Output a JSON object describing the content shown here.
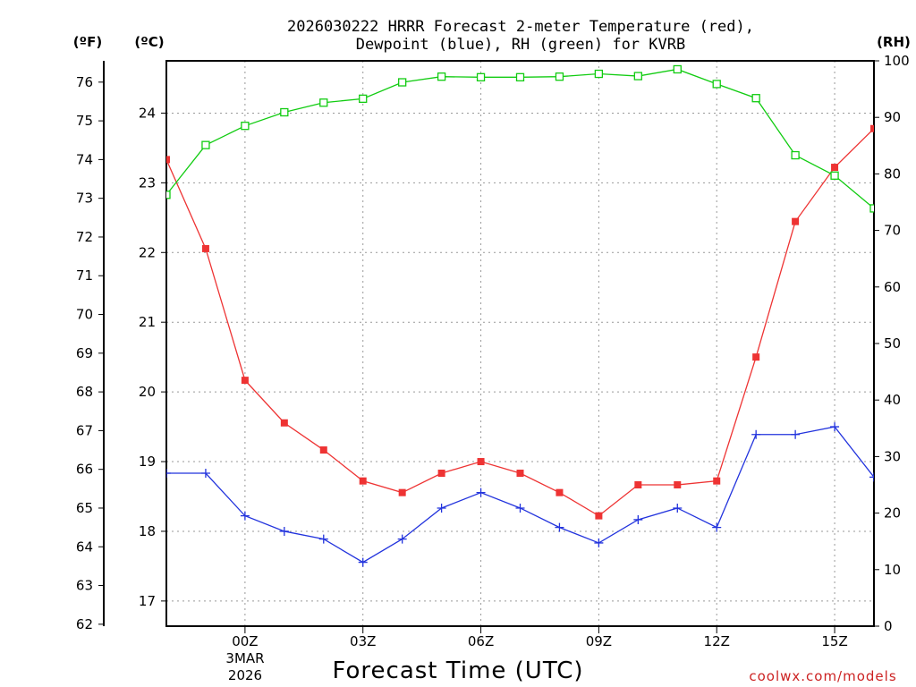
{
  "chart_data": {
    "type": "line",
    "title_line1": "2026030222 HRRR Forecast 2-meter Temperature (red),",
    "title_line2": "Dewpoint (blue), RH (green) for KVRB",
    "xlabel": "Forecast Time (UTC)",
    "credit": "coolwx.com/models",
    "date_label_1": "3MAR",
    "date_label_2": "2026",
    "unit_f": "(ºF)",
    "unit_c": "(ºC)",
    "unit_rh": "(RH)",
    "x_hours_range": [
      -2,
      16
    ],
    "x_ticks": [
      {
        "hour": 0,
        "label": "00Z"
      },
      {
        "hour": 3,
        "label": "03Z"
      },
      {
        "hour": 6,
        "label": "06Z"
      },
      {
        "hour": 9,
        "label": "09Z"
      },
      {
        "hour": 12,
        "label": "12Z"
      },
      {
        "hour": 15,
        "label": "15Z"
      }
    ],
    "f_ticks": [
      "62",
      "63",
      "64",
      "65",
      "66",
      "67",
      "68",
      "69",
      "70",
      "71",
      "72",
      "73",
      "74",
      "75",
      "76"
    ],
    "c_ticks": [
      "17",
      "18",
      "19",
      "20",
      "21",
      "22",
      "23",
      "24"
    ],
    "rh_ticks": [
      "0",
      "10",
      "20",
      "30",
      "40",
      "50",
      "60",
      "70",
      "80",
      "90",
      "100"
    ],
    "f_range": [
      61.95,
      76.55
    ],
    "rh_range": [
      0,
      100
    ],
    "colors": {
      "temperature": "#ee3333",
      "dewpoint": "#2233dd",
      "rh": "#11cc11"
    },
    "series": [
      {
        "name": "Temperature",
        "unit": "F",
        "marker": "square",
        "hours": [
          -2,
          -1,
          0,
          1,
          2,
          3,
          4,
          5,
          6,
          7,
          8,
          9,
          10,
          11,
          12,
          13,
          14,
          15,
          16
        ],
        "values": [
          74.0,
          71.7,
          68.3,
          67.2,
          66.5,
          65.7,
          65.4,
          65.9,
          66.2,
          65.9,
          65.4,
          64.8,
          65.6,
          65.6,
          65.7,
          68.9,
          72.4,
          73.8,
          74.8
        ]
      },
      {
        "name": "Dewpoint",
        "unit": "F",
        "marker": "plus",
        "hours": [
          -2,
          -1,
          0,
          1,
          2,
          3,
          4,
          5,
          6,
          7,
          8,
          9,
          10,
          11,
          12,
          13,
          14,
          15,
          16
        ],
        "values": [
          65.9,
          65.9,
          64.8,
          64.4,
          64.2,
          63.6,
          64.2,
          65.0,
          65.4,
          65.0,
          64.5,
          64.1,
          64.7,
          65.0,
          64.5,
          66.9,
          66.9,
          67.1,
          65.8
        ]
      },
      {
        "name": "RH",
        "unit": "%",
        "marker": "open-square",
        "hours": [
          -2,
          -1,
          0,
          1,
          2,
          3,
          4,
          5,
          6,
          7,
          8,
          9,
          10,
          11,
          12,
          13,
          14,
          15,
          16
        ],
        "values": [
          76.3,
          85.1,
          88.5,
          90.9,
          92.6,
          93.3,
          96.2,
          97.2,
          97.1,
          97.1,
          97.2,
          97.7,
          97.3,
          98.5,
          95.9,
          93.4,
          83.3,
          79.7,
          73.9
        ]
      }
    ]
  }
}
